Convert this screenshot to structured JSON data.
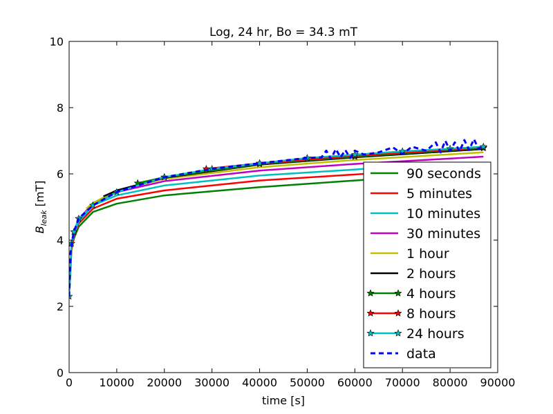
{
  "chart_data": {
    "type": "line",
    "title": "Log, 24 hr, Bo = 34.3 mT",
    "xlabel": "time [s]",
    "ylabel_main": "B",
    "ylabel_sub": "leak",
    "ylabel_unit": " [mT]",
    "xlim": [
      0,
      90000
    ],
    "ylim": [
      0,
      10
    ],
    "xticks": [
      0,
      10000,
      20000,
      30000,
      40000,
      50000,
      60000,
      70000,
      80000,
      90000
    ],
    "xtick_labels": [
      "0",
      "10000",
      "20000",
      "30000",
      "40000",
      "50000",
      "60000",
      "70000",
      "80000",
      "90000"
    ],
    "yticks": [
      0,
      2,
      4,
      6,
      8,
      10
    ],
    "ytick_labels": [
      "0",
      "2",
      "4",
      "6",
      "8",
      "10"
    ],
    "grid": false,
    "legend_position": "lower-right",
    "series": [
      {
        "name": "90 seconds",
        "color": "#008000",
        "style": "solid",
        "marker": "none",
        "x": [
          90,
          500,
          1000,
          2000,
          5000,
          10000,
          20000,
          40000,
          62000
        ],
        "y": [
          2.5,
          3.7,
          4.05,
          4.4,
          4.85,
          5.1,
          5.35,
          5.6,
          5.82
        ]
      },
      {
        "name": "5 minutes",
        "color": "#ff0000",
        "style": "solid",
        "marker": "none",
        "x": [
          300,
          500,
          1000,
          2000,
          5000,
          10000,
          20000,
          40000,
          62000
        ],
        "y": [
          3.3,
          3.75,
          4.12,
          4.5,
          4.95,
          5.25,
          5.5,
          5.8,
          6.0
        ]
      },
      {
        "name": "10 minutes",
        "color": "#00bfbf",
        "style": "solid",
        "marker": "none",
        "x": [
          600,
          1000,
          2000,
          5000,
          10000,
          20000,
          40000,
          62000
        ],
        "y": [
          3.9,
          4.2,
          4.55,
          5.05,
          5.35,
          5.65,
          5.95,
          6.15
        ]
      },
      {
        "name": "30 minutes",
        "color": "#bf00bf",
        "style": "solid",
        "marker": "none",
        "x": [
          1800,
          2000,
          5000,
          10000,
          20000,
          40000,
          60000,
          87000
        ],
        "y": [
          4.55,
          4.62,
          5.12,
          5.45,
          5.78,
          6.1,
          6.3,
          6.52
        ]
      },
      {
        "name": "1 hour",
        "color": "#bfbf00",
        "style": "solid",
        "marker": "none",
        "x": [
          3600,
          5000,
          10000,
          20000,
          40000,
          60000,
          87000
        ],
        "y": [
          4.95,
          5.12,
          5.5,
          5.85,
          6.2,
          6.42,
          6.65
        ]
      },
      {
        "name": "2 hours",
        "color": "#000000",
        "style": "solid",
        "marker": "none",
        "x": [
          7200,
          10000,
          20000,
          40000,
          60000,
          87000
        ],
        "y": [
          5.32,
          5.5,
          5.88,
          6.28,
          6.5,
          6.75
        ]
      },
      {
        "name": "4 hours",
        "color": "#008000",
        "style": "solid",
        "marker": "star",
        "x": [
          14400,
          20000,
          40000,
          60000,
          87000
        ],
        "y": [
          5.72,
          5.9,
          6.3,
          6.52,
          6.78
        ]
      },
      {
        "name": "8 hours",
        "color": "#ff0000",
        "style": "solid",
        "marker": "star",
        "x": [
          28800,
          40000,
          60000,
          87000
        ],
        "y": [
          6.15,
          6.32,
          6.55,
          6.8
        ]
      },
      {
        "name": "24 hours",
        "color": "#00bfbf",
        "style": "solid",
        "marker": "star",
        "x": [
          0,
          500,
          1000,
          2000,
          5000,
          10000,
          20000,
          30000,
          40000,
          50000,
          60000,
          70000,
          80000,
          87000
        ],
        "y": [
          2.3,
          3.9,
          4.25,
          4.65,
          5.05,
          5.45,
          5.9,
          6.15,
          6.32,
          6.48,
          6.58,
          6.68,
          6.76,
          6.82
        ]
      },
      {
        "name": "data",
        "color": "#0000ff",
        "style": "dashed",
        "marker": "none",
        "x": [
          0,
          300,
          600,
          1000,
          2000,
          5000,
          10000,
          20000,
          30000,
          40000,
          50000,
          53000,
          54000,
          55000,
          56000,
          57000,
          58000,
          59000,
          60000,
          62000,
          65000,
          68000,
          70000,
          72000,
          75000,
          77000,
          78000,
          79000,
          80000,
          81000,
          82000,
          83000,
          84000,
          85000,
          86000,
          87000
        ],
        "y": [
          2.3,
          3.6,
          3.95,
          4.25,
          4.65,
          5.05,
          5.45,
          5.9,
          6.15,
          6.32,
          6.48,
          6.5,
          6.7,
          6.45,
          6.75,
          6.5,
          6.72,
          6.48,
          6.7,
          6.58,
          6.65,
          6.8,
          6.6,
          6.82,
          6.7,
          6.95,
          6.65,
          7.0,
          6.7,
          6.95,
          6.68,
          7.02,
          6.72,
          7.05,
          6.75,
          6.88
        ]
      }
    ]
  }
}
